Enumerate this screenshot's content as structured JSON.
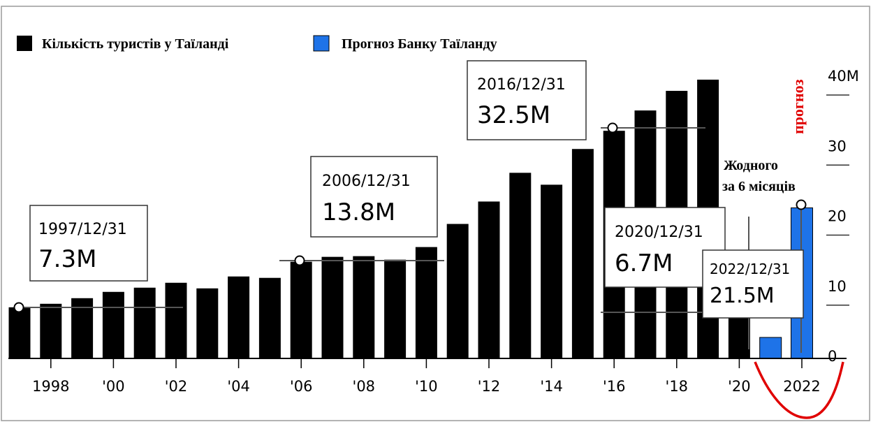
{
  "chart_data": {
    "type": "bar",
    "legend": [
      {
        "name": "Кількість туристів у Таїланді",
        "color": "#000000"
      },
      {
        "name": "Прогноз Банку Таїланду",
        "color": "#1e73e8"
      }
    ],
    "legend_position": "top-left",
    "y_axis_side": "right",
    "ylim": [
      0,
      40
    ],
    "y_ticks": [
      "0",
      "10",
      "20",
      "30",
      "40M"
    ],
    "x_ticks": [
      "1998",
      "'00",
      "'02",
      "'04",
      "'06",
      "'08",
      "'10",
      "'12",
      "'14",
      "'16",
      "'18",
      "'20",
      "2022"
    ],
    "series": [
      {
        "name": "Кількість туристів у Таїланді",
        "color": "#000000",
        "x": [
          1997,
          1998,
          1999,
          2000,
          2001,
          2002,
          2003,
          2004,
          2005,
          2006,
          2007,
          2008,
          2009,
          2010,
          2011,
          2012,
          2013,
          2014,
          2015,
          2016,
          2017,
          2018,
          2019,
          2020
        ],
        "values": [
          7.3,
          7.8,
          8.6,
          9.5,
          10.1,
          10.8,
          10.0,
          11.7,
          11.5,
          13.8,
          14.5,
          14.6,
          14.1,
          15.9,
          19.2,
          22.4,
          26.5,
          24.8,
          29.9,
          32.5,
          35.4,
          38.2,
          39.8,
          6.7
        ]
      },
      {
        "name": "Прогноз Банку Таїланду",
        "color": "#1e73e8",
        "x": [
          2021,
          2022
        ],
        "values": [
          3.0,
          21.5
        ]
      }
    ],
    "annotations": [
      {
        "date": "1997/12/31",
        "value": "7.3M"
      },
      {
        "date": "2006/12/31",
        "value": "13.8M"
      },
      {
        "date": "2016/12/31",
        "value": "32.5M"
      },
      {
        "date": "2020/12/31",
        "value": "6.7M"
      },
      {
        "date": "2022/12/31",
        "value": "21.5M"
      }
    ],
    "note_lines": [
      "Жодного",
      "за 6 місяців"
    ],
    "forecast_label": "прогноз",
    "forecast_mark_color": "#e00000"
  }
}
